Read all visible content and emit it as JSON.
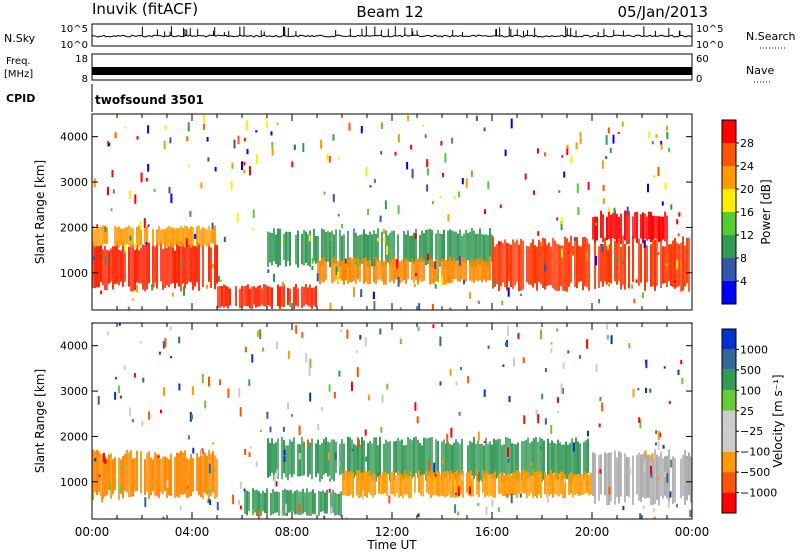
{
  "header": {
    "station": "Inuvik (fitACF)",
    "beam": "Beam 12",
    "date": "05/Jan/2013"
  },
  "left_labels": {
    "nsky": "N.Sky",
    "freq_line1": "Freq.",
    "freq_line2": "[MHz]",
    "cpid": "CPID"
  },
  "right_labels": {
    "nsearch": "N.Search",
    "nave": "Nave"
  },
  "cpid_value": "twofsound 3501",
  "strip_ticks": {
    "nsky_left": [
      "10^5",
      "10^0"
    ],
    "nsky_right": [
      "10^5",
      "10^0"
    ],
    "freq_left": [
      "18",
      "8"
    ],
    "nave_right": [
      "60",
      "0"
    ]
  },
  "chart_data": [
    {
      "type": "heatmap",
      "panel": "power",
      "ylabel": "Slant Range [km]",
      "yticks": [
        "4000",
        "3000",
        "2000",
        "1000"
      ],
      "ylim": [
        180,
        4500
      ],
      "xlim": [
        0,
        24
      ],
      "colorbar_label": "Power [dB]",
      "colorbar_ticks": [
        "28",
        "24",
        "20",
        "16",
        "12",
        "8",
        "4"
      ],
      "colorbar_colors": [
        "#0000ff",
        "#3355aa",
        "#339955",
        "#55cc33",
        "#ffee00",
        "#ff9900",
        "#ff5500",
        "#ff0000"
      ],
      "bands": [
        {
          "x0": 0,
          "x1": 5,
          "r0": 700,
          "r1": 1600,
          "color": "#ff2200"
        },
        {
          "x0": 0,
          "x1": 5,
          "r0": 1600,
          "r1": 2000,
          "color": "#ff9900"
        },
        {
          "x0": 5,
          "x1": 9,
          "r0": 250,
          "r1": 700,
          "color": "#ff2200"
        },
        {
          "x0": 7,
          "x1": 16,
          "r0": 1200,
          "r1": 1900,
          "color": "#339955"
        },
        {
          "x0": 9,
          "x1": 16,
          "r0": 800,
          "r1": 1300,
          "color": "#ff8800"
        },
        {
          "x0": 16,
          "x1": 24,
          "r0": 700,
          "r1": 1700,
          "color": "#ff3300"
        },
        {
          "x0": 20,
          "x1": 23,
          "r0": 1700,
          "r1": 2300,
          "color": "#ff0000"
        }
      ]
    },
    {
      "type": "heatmap",
      "panel": "velocity",
      "ylabel": "Slant Range [km]",
      "yticks": [
        "4000",
        "3000",
        "2000",
        "1000"
      ],
      "ylim": [
        180,
        4500
      ],
      "xlim": [
        0,
        24
      ],
      "xlabel": "Time UT",
      "xticks": [
        "00:00",
        "04:00",
        "08:00",
        "12:00",
        "16:00",
        "20:00",
        "00:00"
      ],
      "colorbar_label": "Velocity [m s⁻¹]",
      "colorbar_ticks": [
        "1000",
        "500",
        "100",
        "25",
        "−25",
        "−100",
        "−500",
        "−1000"
      ],
      "colorbar_colors": [
        "#ff0000",
        "#ff5500",
        "#ff9900",
        "#cccccc",
        "#cccccc",
        "#66cc33",
        "#339955",
        "#336699",
        "#0033cc"
      ],
      "bands": [
        {
          "x0": 0,
          "x1": 5,
          "r0": 700,
          "r1": 1600,
          "color": "#ff8800"
        },
        {
          "x0": 6,
          "x1": 10,
          "r0": 300,
          "r1": 800,
          "color": "#339955"
        },
        {
          "x0": 7,
          "x1": 20,
          "r0": 1100,
          "r1": 1900,
          "color": "#339955"
        },
        {
          "x0": 10,
          "x1": 20,
          "r0": 700,
          "r1": 1200,
          "color": "#ff9900"
        },
        {
          "x0": 20,
          "x1": 24,
          "r0": 600,
          "r1": 1600,
          "color": "#aaaaaa"
        }
      ]
    }
  ]
}
